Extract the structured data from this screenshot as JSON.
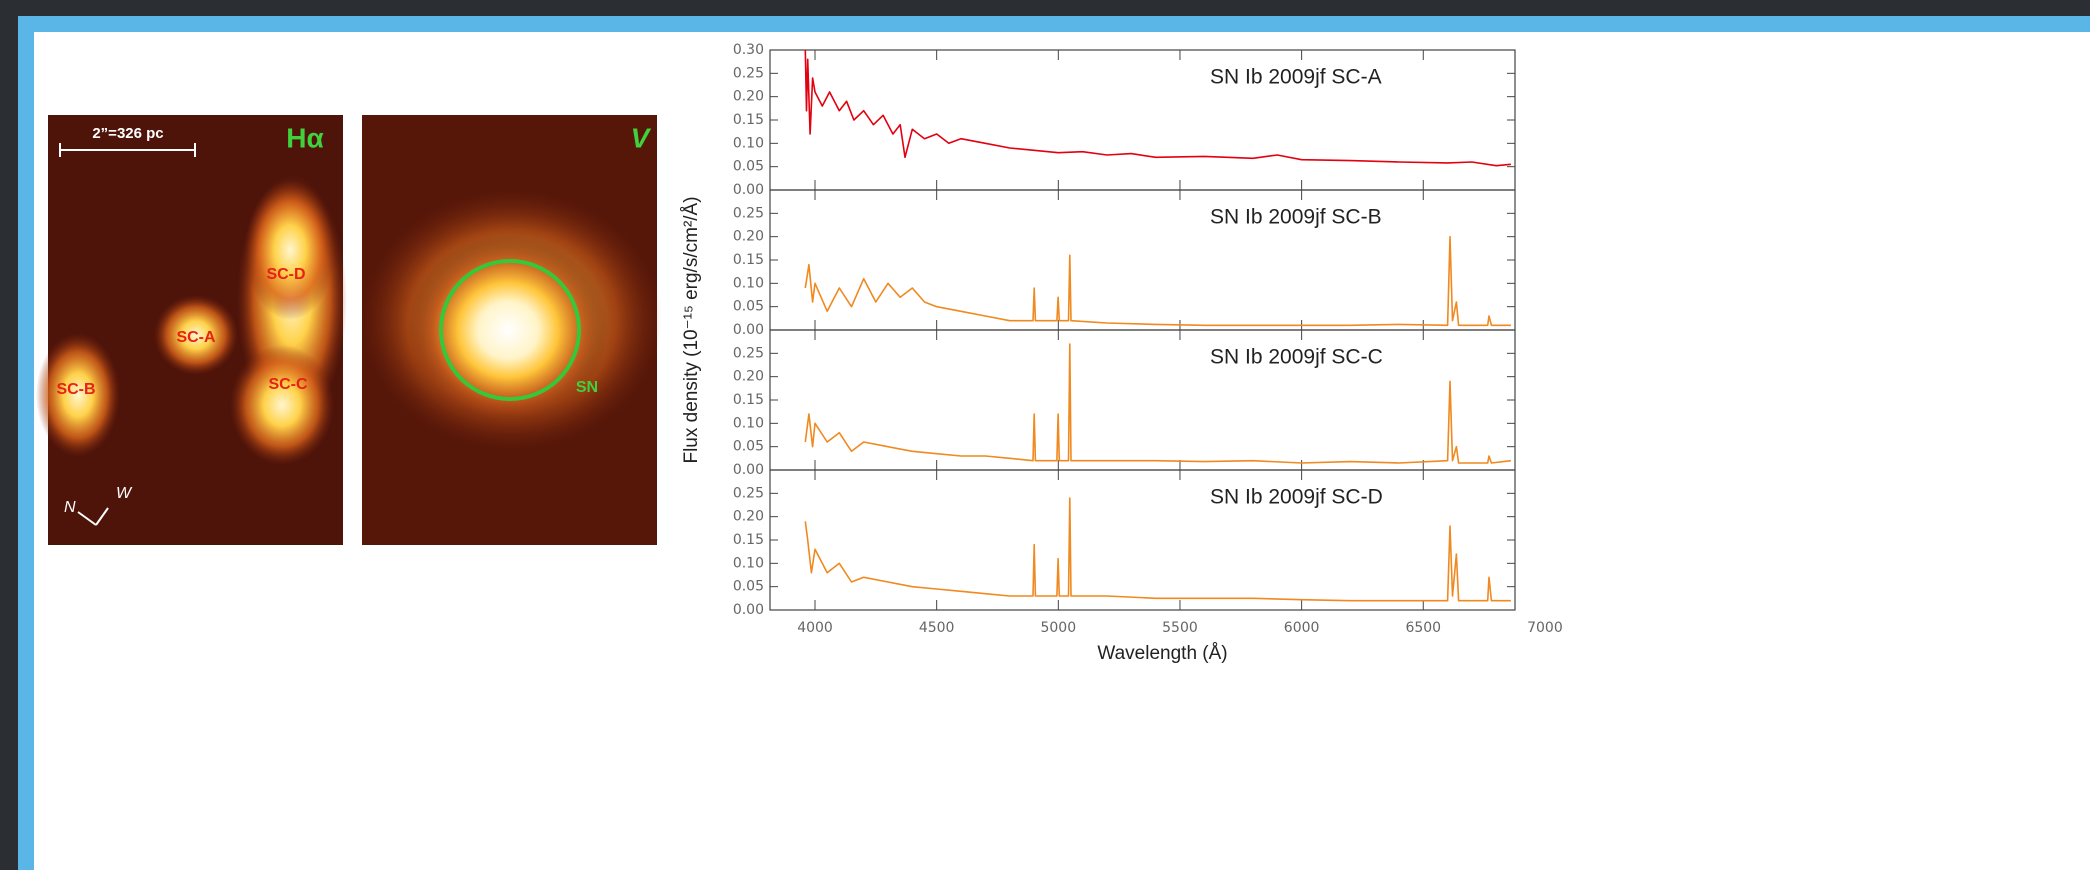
{
  "chart_data": [
    {
      "type": "line",
      "title": "SN Ib 2009jf SC-A",
      "color": "#e3000f",
      "y_label": "Flux density (10⁻¹⁵ erg/s/cm²/Å)",
      "xlim": [
        3815,
        6877
      ],
      "ylim": [
        0,
        0.3
      ],
      "yticks": [
        {
          "value": 0,
          "label": "0.00"
        },
        0.05,
        {
          "value": 0.1,
          "label": "0.10"
        },
        0.15,
        {
          "value": 0.2,
          "label": "0.20"
        },
        0.25,
        {
          "value": 0.3,
          "label": "0.30"
        }
      ],
      "x": [
        3960,
        3965,
        3970,
        3980,
        3990,
        4000,
        4030,
        4060,
        4100,
        4130,
        4160,
        4200,
        4240,
        4280,
        4320,
        4350,
        4370,
        4400,
        4450,
        4500,
        4550,
        4600,
        4700,
        4800,
        4900,
        5000,
        5100,
        5200,
        5300,
        5400,
        5600,
        5800,
        5900,
        6000,
        6200,
        6400,
        6600,
        6700,
        6800,
        6860
      ],
      "values": [
        0.3,
        0.17,
        0.28,
        0.12,
        0.24,
        0.21,
        0.18,
        0.21,
        0.17,
        0.19,
        0.15,
        0.17,
        0.14,
        0.16,
        0.12,
        0.14,
        0.07,
        0.13,
        0.11,
        0.12,
        0.1,
        0.11,
        0.1,
        0.09,
        0.085,
        0.08,
        0.082,
        0.075,
        0.078,
        0.07,
        0.072,
        0.068,
        0.075,
        0.065,
        0.063,
        0.06,
        0.058,
        0.06,
        0.052,
        0.055
      ]
    },
    {
      "type": "line",
      "title": "SN Ib 2009jf SC-B",
      "color": "#f0891f",
      "xlim": [
        3815,
        6877
      ],
      "ylim": [
        0,
        0.3
      ],
      "yticks": [
        {
          "value": 0,
          "label": "0.00"
        },
        0.05,
        {
          "value": 0.1,
          "label": "0.10"
        },
        0.15,
        {
          "value": 0.2,
          "label": "0.20"
        },
        0.25
      ],
      "x": [
        3960,
        3975,
        3990,
        4000,
        4050,
        4100,
        4150,
        4200,
        4250,
        4300,
        4350,
        4400,
        4450,
        4500,
        4600,
        4700,
        4800,
        4896,
        4901,
        4906,
        4994,
        4999,
        5004,
        5042,
        5047,
        5052,
        5200,
        5400,
        5600,
        5800,
        6000,
        6200,
        6400,
        6600,
        6610,
        6620,
        6636,
        6645,
        6765,
        6770,
        6780,
        6860
      ],
      "values": [
        0.09,
        0.14,
        0.06,
        0.1,
        0.04,
        0.09,
        0.05,
        0.11,
        0.06,
        0.1,
        0.07,
        0.09,
        0.06,
        0.05,
        0.04,
        0.03,
        0.02,
        0.02,
        0.09,
        0.02,
        0.02,
        0.07,
        0.02,
        0.02,
        0.16,
        0.02,
        0.015,
        0.012,
        0.01,
        0.01,
        0.01,
        0.01,
        0.012,
        0.01,
        0.2,
        0.02,
        0.06,
        0.01,
        0.01,
        0.03,
        0.01,
        0.01
      ]
    },
    {
      "type": "line",
      "title": "SN Ib 2009jf SC-C",
      "color": "#f0891f",
      "xlim": [
        3815,
        6877
      ],
      "ylim": [
        0,
        0.3
      ],
      "yticks": [
        {
          "value": 0,
          "label": "0.00"
        },
        0.05,
        {
          "value": 0.1,
          "label": "0.10"
        },
        0.15,
        {
          "value": 0.2,
          "label": "0.20"
        },
        0.25
      ],
      "x": [
        3960,
        3975,
        3990,
        4000,
        4050,
        4100,
        4150,
        4200,
        4300,
        4400,
        4500,
        4600,
        4700,
        4800,
        4896,
        4901,
        4906,
        4994,
        4999,
        5004,
        5042,
        5047,
        5052,
        5200,
        5400,
        5600,
        5800,
        6000,
        6200,
        6400,
        6600,
        6610,
        6620,
        6636,
        6645,
        6765,
        6770,
        6780,
        6860
      ],
      "values": [
        0.06,
        0.12,
        0.05,
        0.1,
        0.06,
        0.08,
        0.04,
        0.06,
        0.05,
        0.04,
        0.035,
        0.03,
        0.03,
        0.025,
        0.02,
        0.12,
        0.02,
        0.02,
        0.12,
        0.02,
        0.02,
        0.27,
        0.02,
        0.02,
        0.02,
        0.018,
        0.02,
        0.015,
        0.018,
        0.015,
        0.02,
        0.19,
        0.02,
        0.05,
        0.015,
        0.015,
        0.03,
        0.015,
        0.02
      ]
    },
    {
      "type": "line",
      "title": "SN Ib 2009jf SC-D",
      "color": "#f0891f",
      "x_label": "Wavelength (Å)",
      "xlim": [
        3815,
        6877
      ],
      "ylim": [
        0,
        0.3
      ],
      "xticks": [
        4000,
        4500,
        5000,
        5500,
        6000,
        6500,
        7000
      ],
      "yticks": [
        {
          "value": 0,
          "label": "0.00"
        },
        0.05,
        {
          "value": 0.1,
          "label": "0.10"
        },
        0.15,
        {
          "value": 0.2,
          "label": "0.20"
        },
        0.25
      ],
      "x": [
        3960,
        3970,
        3985,
        4000,
        4050,
        4100,
        4150,
        4200,
        4300,
        4400,
        4500,
        4600,
        4700,
        4800,
        4896,
        4901,
        4906,
        4994,
        4999,
        5004,
        5042,
        5047,
        5052,
        5200,
        5400,
        5600,
        5800,
        6000,
        6200,
        6400,
        6600,
        6610,
        6620,
        6636,
        6645,
        6700,
        6765,
        6770,
        6780,
        6860
      ],
      "values": [
        0.19,
        0.15,
        0.08,
        0.13,
        0.08,
        0.1,
        0.06,
        0.07,
        0.06,
        0.05,
        0.045,
        0.04,
        0.035,
        0.03,
        0.03,
        0.14,
        0.03,
        0.03,
        0.11,
        0.03,
        0.03,
        0.24,
        0.03,
        0.03,
        0.025,
        0.025,
        0.025,
        0.022,
        0.02,
        0.02,
        0.02,
        0.18,
        0.03,
        0.12,
        0.02,
        0.02,
        0.02,
        0.07,
        0.02,
        0.02
      ]
    }
  ],
  "images": [
    {
      "label": "Hα",
      "scale": "2”=326 pc",
      "regions": [
        "SC-D",
        "SC-A",
        "SC-B",
        "SC-C"
      ],
      "compass": [
        "N",
        "W"
      ]
    },
    {
      "label": "V",
      "marker": "SN"
    }
  ]
}
